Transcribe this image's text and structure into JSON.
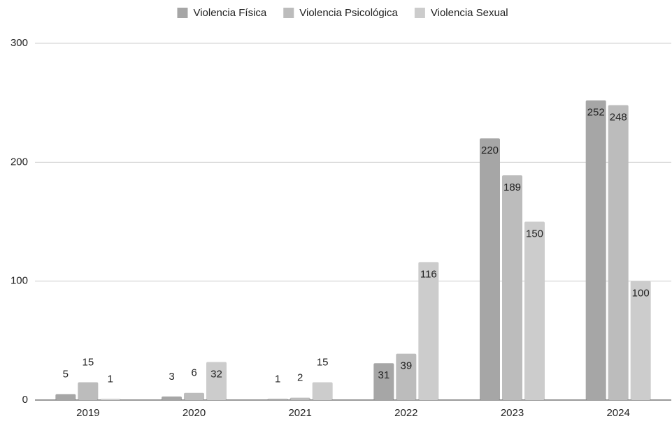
{
  "chart_data": {
    "type": "bar",
    "categories": [
      "2019",
      "2020",
      "2021",
      "2022",
      "2023",
      "2024"
    ],
    "series": [
      {
        "name": "Violencia Física",
        "color": "#a6a6a6",
        "values": [
          5,
          3,
          1,
          31,
          220,
          252
        ]
      },
      {
        "name": "Violencia Psicológica",
        "color": "#bcbcbc",
        "values": [
          15,
          6,
          2,
          39,
          189,
          248
        ]
      },
      {
        "name": "Violencia Sexual",
        "color": "#cccccc",
        "values": [
          1,
          32,
          15,
          116,
          150,
          100
        ]
      }
    ],
    "ylim": [
      0,
      300
    ],
    "yticks": [
      0,
      100,
      200,
      300
    ],
    "grid": true,
    "legend": "top"
  }
}
